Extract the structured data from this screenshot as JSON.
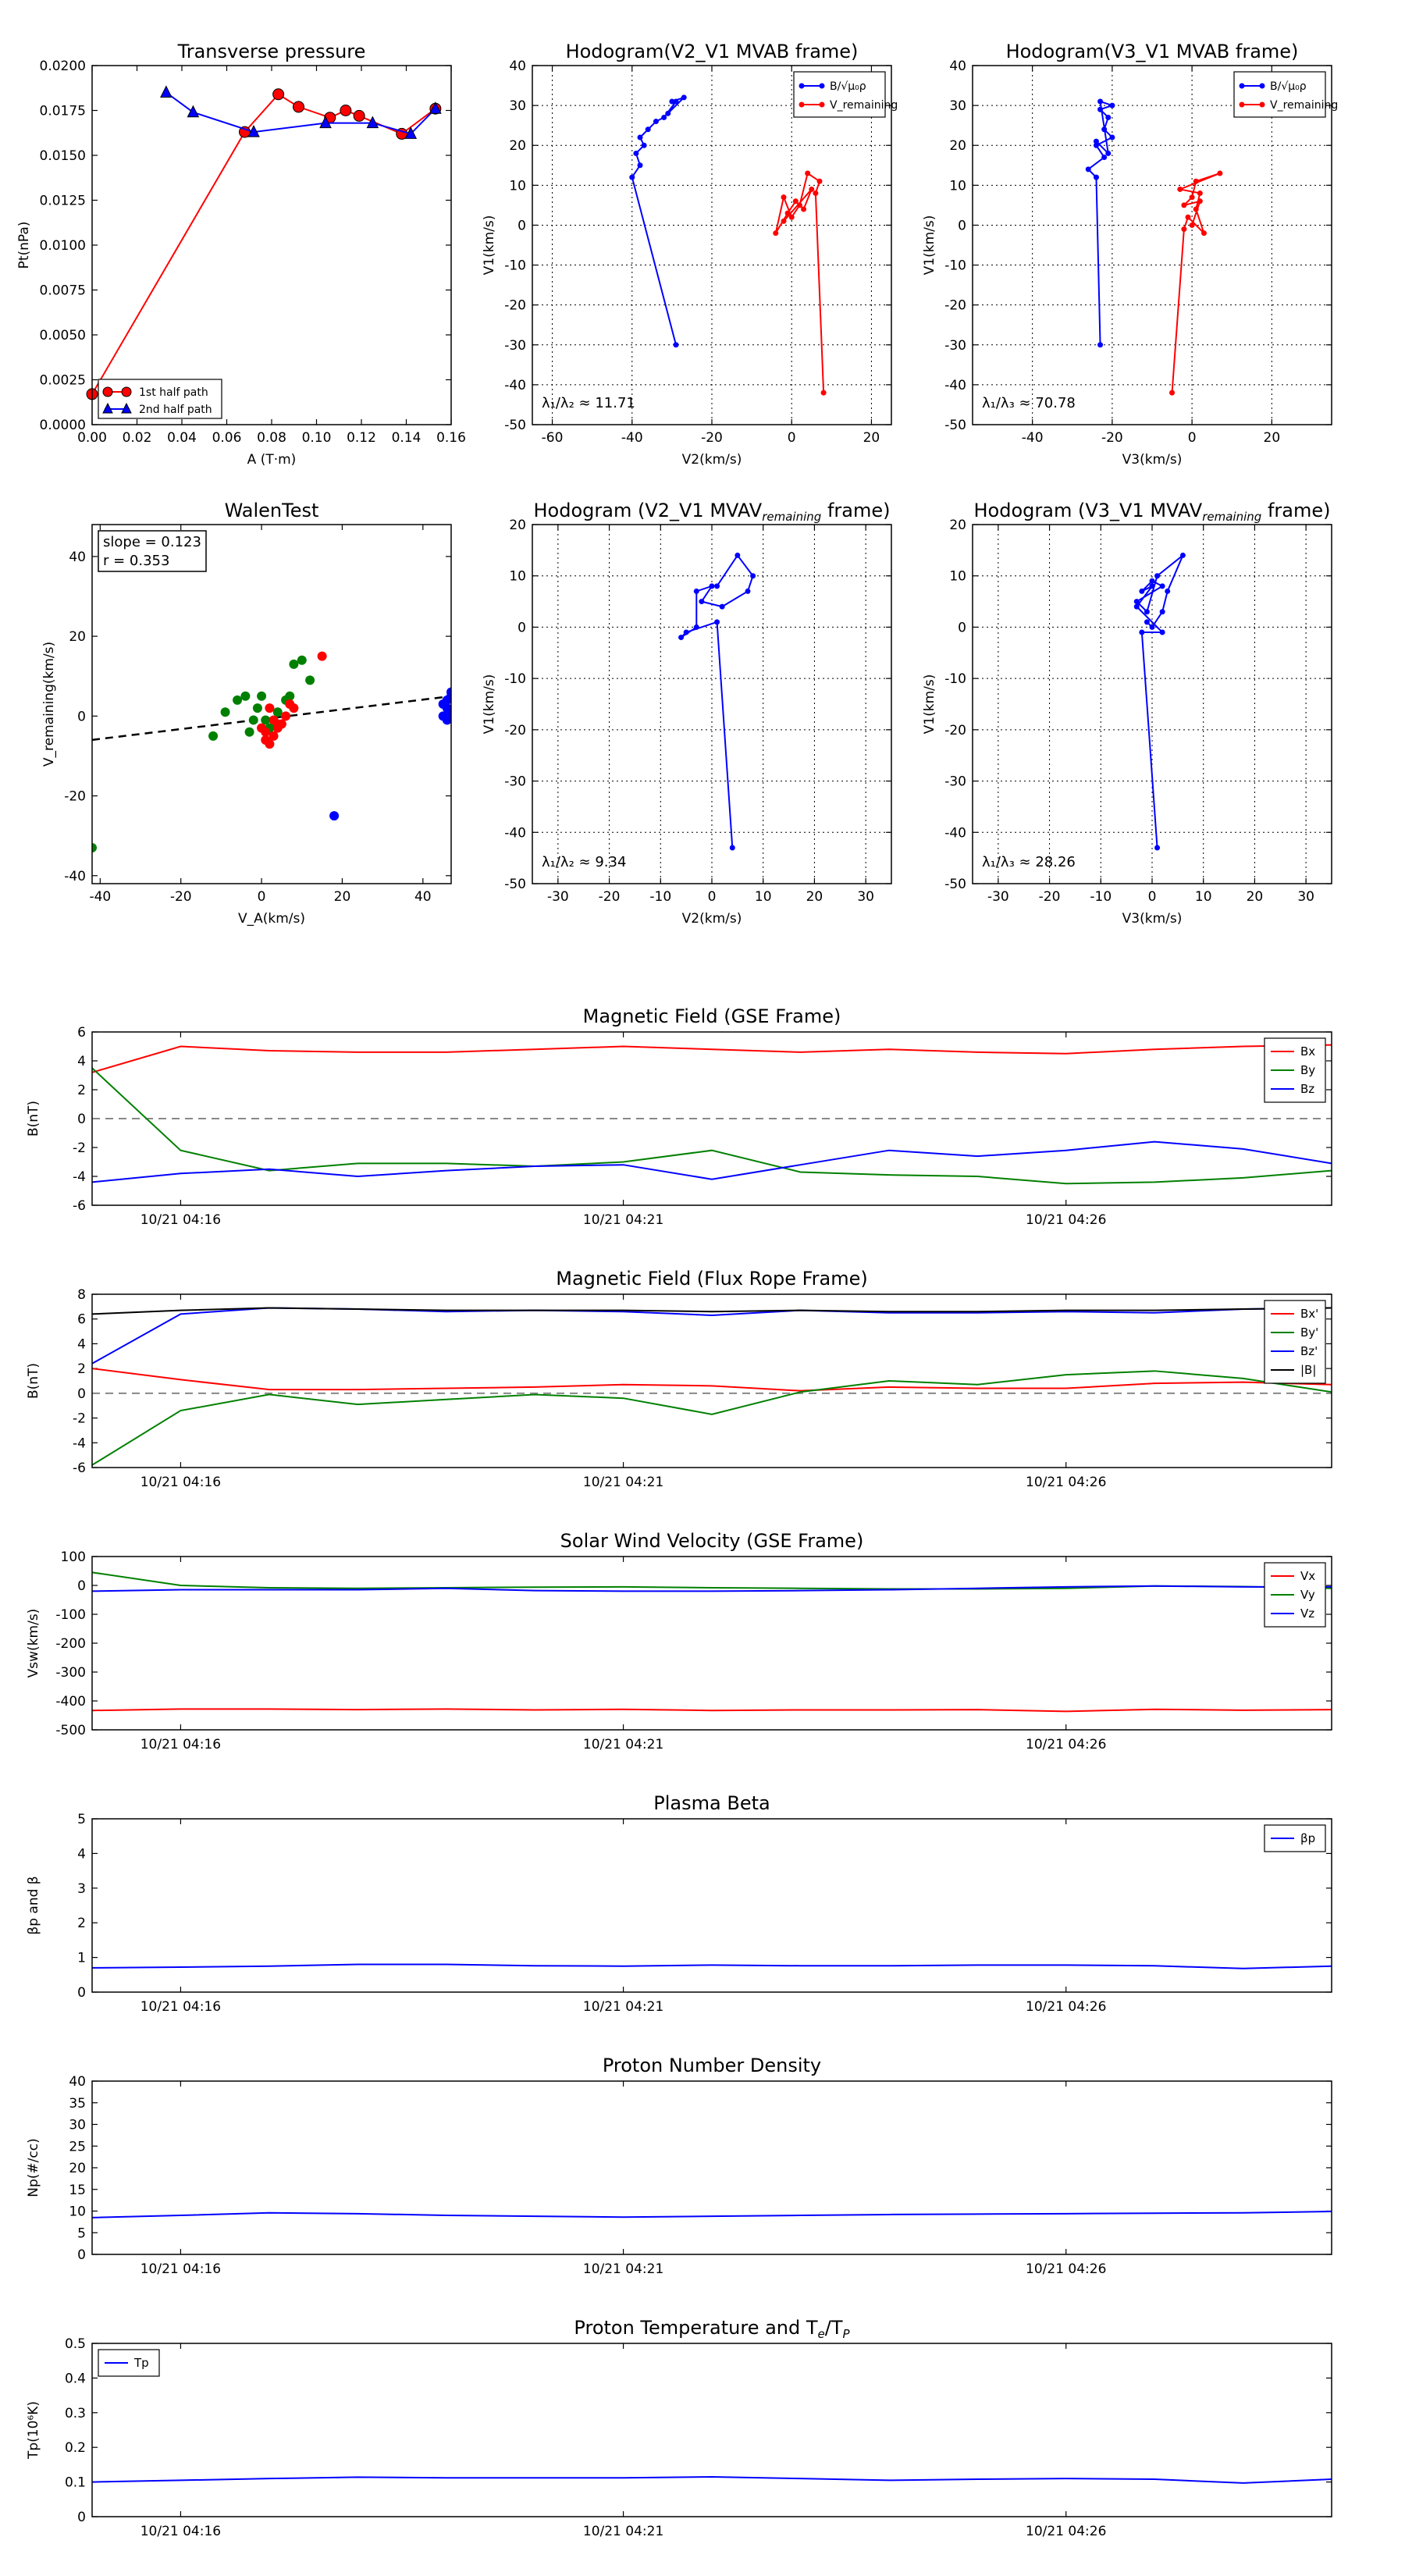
{
  "top_row": [
    {
      "type": "line",
      "title": "Transverse pressure",
      "xlabel": "A (T·m)",
      "ylabel": "Pt(nPa)",
      "xlim": [
        0,
        0.16
      ],
      "ylim": [
        0,
        0.02
      ],
      "xticks": [
        0.0,
        0.02,
        0.04,
        0.06,
        0.08,
        0.1,
        0.12,
        0.14,
        0.16
      ],
      "yticks": [
        0.0,
        0.0025,
        0.005,
        0.0075,
        0.01,
        0.0125,
        0.015,
        0.0175,
        0.02
      ],
      "xtick_labels": [
        "0.00",
        "0.02",
        "0.04",
        "0.06",
        "0.08",
        "0.10",
        "0.12",
        "0.14",
        "0.16"
      ],
      "ytick_labels": [
        "0.0000",
        "0.0025",
        "0.0050",
        "0.0075",
        "0.0100",
        "0.0125",
        "0.0150",
        "0.0175",
        "0.0200"
      ],
      "grid": false,
      "legend_position": "lower-left",
      "series": [
        {
          "name": "1st half path",
          "color": "#ff0000",
          "marker": "circle",
          "x": [
            0.0,
            0.068,
            0.083,
            0.092,
            0.106,
            0.113,
            0.119,
            0.138,
            0.153
          ],
          "y": [
            0.0017,
            0.0163,
            0.0184,
            0.0177,
            0.0171,
            0.0175,
            0.0172,
            0.0162,
            0.0176
          ]
        },
        {
          "name": "2nd half path",
          "color": "#0000ff",
          "marker": "triangle",
          "x": [
            0.033,
            0.045,
            0.072,
            0.104,
            0.125,
            0.142,
            0.153
          ],
          "y": [
            0.0185,
            0.0174,
            0.0163,
            0.0168,
            0.0168,
            0.0162,
            0.0176
          ]
        }
      ]
    },
    {
      "type": "line",
      "title": "Hodogram(V2_V1 MVAB frame)",
      "xlabel": "V2(km/s)",
      "ylabel": "V1(km/s)",
      "xlim": [
        -65,
        25
      ],
      "ylim": [
        -50,
        40
      ],
      "xticks": [
        -60,
        -40,
        -20,
        0,
        20
      ],
      "yticks": [
        -50,
        -40,
        -30,
        -20,
        -10,
        0,
        10,
        20,
        30,
        40
      ],
      "grid": true,
      "legend_position": "top-right",
      "annotation": "λ₁/λ₂ ≈ 11.71",
      "series": [
        {
          "name": "B/√μ₀ρ",
          "color": "#0000ff",
          "x": [
            -29,
            -40,
            -38,
            -39,
            -37,
            -38,
            -36,
            -34,
            -32,
            -29,
            -31,
            -27,
            -30
          ],
          "y": [
            -30,
            12,
            15,
            18,
            20,
            22,
            24,
            26,
            27,
            31,
            28,
            32,
            31
          ]
        },
        {
          "name": "V_remaining",
          "color": "#ff0000",
          "x": [
            8,
            6,
            7,
            4,
            2,
            0,
            -2,
            -4,
            -1,
            1,
            3,
            5,
            -2
          ],
          "y": [
            -42,
            8,
            11,
            13,
            5,
            2,
            7,
            -2,
            3,
            6,
            4,
            9,
            1
          ]
        }
      ]
    },
    {
      "type": "line",
      "title": "Hodogram(V3_V1 MVAB frame)",
      "xlabel": "V3(km/s)",
      "ylabel": "V1(km/s)",
      "xlim": [
        -55,
        35
      ],
      "ylim": [
        -50,
        40
      ],
      "xticks": [
        -40,
        -20,
        0,
        20
      ],
      "yticks": [
        -50,
        -40,
        -30,
        -20,
        -10,
        0,
        10,
        20,
        30,
        40
      ],
      "grid": true,
      "legend_position": "top-right",
      "annotation": "λ₁/λ₃ ≈ 70.78",
      "series": [
        {
          "name": "B/√μ₀ρ",
          "color": "#0000ff",
          "x": [
            -23,
            -24,
            -26,
            -22,
            -24,
            -20,
            -22,
            -21,
            -23,
            -20,
            -23,
            -21,
            -24
          ],
          "y": [
            -30,
            12,
            14,
            17,
            20,
            22,
            24,
            27,
            29,
            30,
            31,
            18,
            21
          ]
        },
        {
          "name": "V_remaining",
          "color": "#ff0000",
          "x": [
            -5,
            -2,
            -1,
            3,
            1,
            2,
            -3,
            7,
            1,
            0,
            -2,
            2,
            0
          ],
          "y": [
            -42,
            -1,
            2,
            -2,
            4,
            8,
            9,
            13,
            11,
            7,
            5,
            6,
            0
          ]
        }
      ]
    }
  ],
  "mid_row": [
    {
      "type": "scatter",
      "title": "WalenTest",
      "xlabel": "V_A(km/s)",
      "ylabel": "V_remaining(km/s)",
      "xlim": [
        -42,
        47
      ],
      "ylim": [
        -42,
        48
      ],
      "xticks": [
        -40,
        -20,
        0,
        20,
        40
      ],
      "yticks": [
        -40,
        -20,
        0,
        20,
        40
      ],
      "grid": false,
      "annotation_lines": [
        "slope = 0.123",
        "r = 0.353"
      ],
      "fit_line": {
        "slope": 0.123,
        "intercept": -0.8
      },
      "series": [
        {
          "color": "#008000",
          "x": [
            -42,
            -12,
            -9,
            -6,
            -4,
            -3,
            -1,
            0,
            1,
            2,
            4,
            6,
            7,
            8,
            10,
            12,
            -2
          ],
          "y": [
            -33,
            -5,
            1,
            4,
            5,
            -4,
            2,
            5,
            -1,
            -3,
            1,
            4,
            5,
            13,
            14,
            9,
            -1
          ]
        },
        {
          "color": "#ff0000",
          "x": [
            1,
            2,
            3,
            4,
            5,
            6,
            7,
            2,
            3,
            1,
            0,
            8,
            15,
            4
          ],
          "y": [
            -4,
            -7,
            -5,
            -3,
            -2,
            0,
            3,
            2,
            -1,
            -6,
            -3,
            2,
            15,
            -2
          ]
        },
        {
          "color": "#0000ff",
          "x": [
            18,
            45,
            46,
            46,
            47,
            46,
            47,
            45,
            47
          ],
          "y": [
            -25,
            0,
            2,
            4,
            6,
            -1,
            1,
            3,
            5
          ]
        }
      ]
    },
    {
      "type": "line",
      "title": "Hodogram (V2_V1 MVAV",
      "title_sub": "remaining",
      "title_end": " frame)",
      "xlabel": "V2(km/s)",
      "ylabel": "V1(km/s)",
      "xlim": [
        -35,
        35
      ],
      "ylim": [
        -50,
        20
      ],
      "xticks": [
        -30,
        -20,
        -10,
        0,
        10,
        20,
        30
      ],
      "yticks": [
        -50,
        -40,
        -30,
        -20,
        -10,
        0,
        10,
        20
      ],
      "grid": true,
      "annotation": "λ₁/λ₂ ≈ 9.34",
      "series": [
        {
          "color": "#0000ff",
          "x": [
            4,
            1,
            -5,
            -6,
            -3,
            -3,
            0,
            -2,
            2,
            7,
            8,
            5,
            1
          ],
          "y": [
            -43,
            1,
            -1,
            -2,
            0,
            7,
            8,
            5,
            4,
            7,
            10,
            14,
            8
          ]
        }
      ]
    },
    {
      "type": "line",
      "title": "Hodogram (V3_V1 MVAV",
      "title_sub": "remaining",
      "title_end": " frame)",
      "xlabel": "V3(km/s)",
      "ylabel": "V1(km/s)",
      "xlim": [
        -35,
        35
      ],
      "ylim": [
        -50,
        20
      ],
      "xticks": [
        -30,
        -20,
        -10,
        0,
        10,
        20,
        30
      ],
      "yticks": [
        -50,
        -40,
        -30,
        -20,
        -10,
        0,
        10,
        20
      ],
      "grid": true,
      "annotation": "λ₁/λ₃ ≈ 28.26",
      "series": [
        {
          "color": "#0000ff",
          "x": [
            1,
            -2,
            2,
            -3,
            0,
            -2,
            0,
            2,
            -3,
            -1,
            1,
            6,
            3,
            2,
            0,
            -1
          ],
          "y": [
            -43,
            -1,
            -1,
            4,
            8,
            7,
            9,
            8,
            5,
            3,
            10,
            14,
            7,
            3,
            0,
            1
          ]
        }
      ]
    }
  ],
  "time_axis": {
    "tick_positions": [
      1,
      6,
      11
    ],
    "tick_labels": [
      "10/21 04:16",
      "10/21 04:21",
      "10/21 04:26"
    ],
    "xlim": [
      0,
      14
    ],
    "x": [
      0,
      1,
      2,
      3,
      4,
      5,
      6,
      7,
      8,
      9,
      10,
      11,
      12,
      13,
      14
    ]
  },
  "time_series": [
    {
      "title": "Magnetic Field (GSE Frame)",
      "ylabel": "B(nT)",
      "ylim": [
        -6,
        6
      ],
      "yticks": [
        -6,
        -4,
        -2,
        0,
        2,
        4,
        6
      ],
      "zero_line": true,
      "legend_position": "top-right",
      "series": [
        {
          "name": "Bx",
          "color": "#ff0000",
          "values": [
            3.2,
            5.0,
            4.7,
            4.6,
            4.6,
            4.8,
            5.0,
            4.8,
            4.6,
            4.8,
            4.6,
            4.5,
            4.8,
            5.0,
            5.1
          ]
        },
        {
          "name": "By",
          "color": "#008000",
          "values": [
            3.5,
            -2.2,
            -3.6,
            -3.1,
            -3.1,
            -3.3,
            -3.0,
            -2.2,
            -3.7,
            -3.9,
            -4.0,
            -4.5,
            -4.4,
            -4.1,
            -3.6
          ]
        },
        {
          "name": "Bz",
          "color": "#0000ff",
          "values": [
            -4.4,
            -3.8,
            -3.5,
            -4.0,
            -3.6,
            -3.3,
            -3.2,
            -4.2,
            -3.2,
            -2.2,
            -2.6,
            -2.2,
            -1.6,
            -2.1,
            -3.1
          ]
        }
      ]
    },
    {
      "title": "Magnetic Field (Flux Rope Frame)",
      "ylabel": "B(nT)",
      "ylim": [
        -6,
        8
      ],
      "yticks": [
        -6,
        -4,
        -2,
        0,
        2,
        4,
        6,
        8
      ],
      "zero_line": true,
      "legend_position": "top-right",
      "series": [
        {
          "name": "Bx'",
          "color": "#ff0000",
          "values": [
            2.0,
            1.1,
            0.3,
            0.3,
            0.4,
            0.5,
            0.7,
            0.6,
            0.2,
            0.5,
            0.4,
            0.4,
            0.8,
            0.9,
            0.7
          ]
        },
        {
          "name": "By'",
          "color": "#008000",
          "values": [
            -5.8,
            -1.4,
            -0.1,
            -0.9,
            -0.5,
            -0.1,
            -0.4,
            -1.7,
            0.1,
            1.0,
            0.7,
            1.5,
            1.8,
            1.2,
            0.1
          ]
        },
        {
          "name": "Bz'",
          "color": "#0000ff",
          "values": [
            2.4,
            6.4,
            6.9,
            6.8,
            6.6,
            6.7,
            6.6,
            6.3,
            6.7,
            6.5,
            6.5,
            6.6,
            6.5,
            6.8,
            6.9
          ]
        },
        {
          "name": "|B|",
          "color": "#000000",
          "values": [
            6.4,
            6.7,
            6.9,
            6.8,
            6.7,
            6.7,
            6.7,
            6.6,
            6.7,
            6.6,
            6.6,
            6.7,
            6.7,
            6.8,
            6.9
          ]
        }
      ]
    },
    {
      "title": "Solar Wind Velocity (GSE Frame)",
      "ylabel": "Vsw(km/s)",
      "ylim": [
        -500,
        100
      ],
      "yticks": [
        -500,
        -400,
        -300,
        -200,
        -100,
        0,
        100
      ],
      "zero_line": false,
      "legend_position": "top-right",
      "series": [
        {
          "name": "Vx",
          "color": "#ff0000",
          "values": [
            -433,
            -428,
            -428,
            -430,
            -428,
            -431,
            -429,
            -433,
            -431,
            -431,
            -430,
            -436,
            -429,
            -432,
            -430
          ]
        },
        {
          "name": "Vy",
          "color": "#008000",
          "values": [
            45,
            0,
            -8,
            -10,
            -8,
            -6,
            -5,
            -8,
            -10,
            -12,
            -12,
            -10,
            -2,
            -4,
            -10
          ]
        },
        {
          "name": "Vz",
          "color": "#0000ff",
          "values": [
            -20,
            -15,
            -15,
            -15,
            -10,
            -18,
            -20,
            -20,
            -18,
            -15,
            -10,
            -5,
            -2,
            -5,
            -5
          ]
        }
      ]
    },
    {
      "title": "Plasma Beta",
      "ylabel": "βp and β",
      "ylim": [
        0,
        5
      ],
      "yticks": [
        0,
        1,
        2,
        3,
        4,
        5
      ],
      "zero_line": false,
      "legend_position": "top-right",
      "series": [
        {
          "name": "βp",
          "color": "#0000ff",
          "values": [
            0.7,
            0.72,
            0.75,
            0.8,
            0.8,
            0.76,
            0.75,
            0.78,
            0.76,
            0.76,
            0.78,
            0.78,
            0.76,
            0.68,
            0.75
          ]
        }
      ]
    },
    {
      "title": "Proton Number Density",
      "ylabel": "Np(#/cc)",
      "ylim": [
        0,
        40
      ],
      "yticks": [
        0,
        5,
        10,
        15,
        20,
        25,
        30,
        35,
        40
      ],
      "zero_line": false,
      "legend_position": "none",
      "series": [
        {
          "name": "Np",
          "color": "#0000ff",
          "values": [
            8.5,
            9.0,
            9.6,
            9.4,
            9.0,
            8.8,
            8.6,
            8.8,
            9.0,
            9.2,
            9.3,
            9.4,
            9.5,
            9.6,
            9.9
          ]
        }
      ]
    },
    {
      "title": "Proton Temperature and T",
      "title_sub": "e",
      "title_mid": "/T",
      "title_sub2": "P",
      "ylabel": "Tp(10⁶K)",
      "ylim": [
        0,
        0.5
      ],
      "yticks": [
        0.0,
        0.1,
        0.2,
        0.3,
        0.4,
        0.5
      ],
      "zero_line": false,
      "legend_position": "top-left",
      "series": [
        {
          "name": "Tp",
          "color": "#0000ff",
          "values": [
            0.1,
            0.105,
            0.11,
            0.114,
            0.112,
            0.112,
            0.112,
            0.115,
            0.11,
            0.105,
            0.108,
            0.11,
            0.108,
            0.097,
            0.108
          ]
        }
      ]
    }
  ]
}
